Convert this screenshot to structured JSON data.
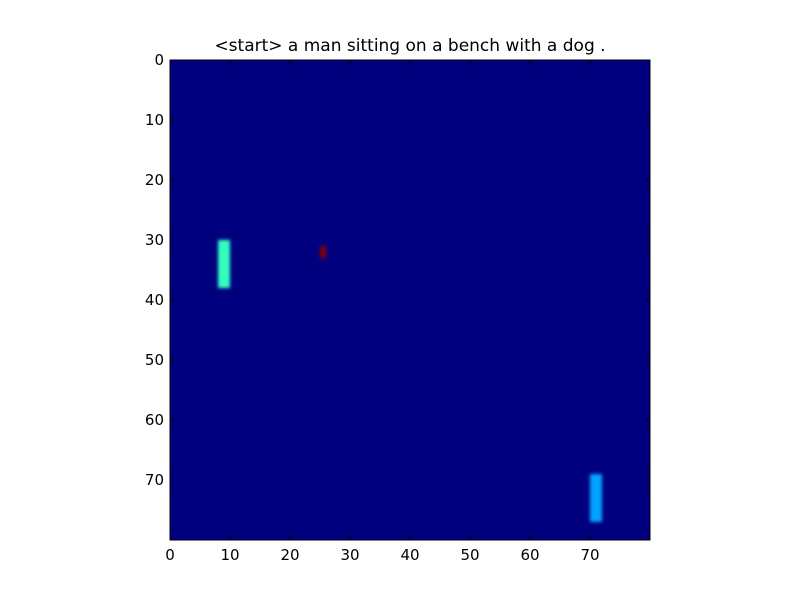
{
  "chart_data": {
    "type": "heatmap",
    "title": "<start> a man sitting on a bench with a dog .",
    "xlabel": "",
    "ylabel": "",
    "grid_size": [
      80,
      80
    ],
    "xlim": [
      0,
      80
    ],
    "ylim": [
      80,
      0
    ],
    "x_ticks": [
      0,
      10,
      20,
      30,
      40,
      50,
      60,
      70
    ],
    "y_ticks": [
      0,
      10,
      20,
      30,
      40,
      50,
      60,
      70
    ],
    "colormap": "jet",
    "background_color": "#00007f",
    "grid": false,
    "cells": [
      {
        "x0": 8,
        "x1": 10,
        "y0": 30,
        "y1": 38,
        "value": 0.4,
        "color": "#36ffc1"
      },
      {
        "x0": 25,
        "x1": 26,
        "y0": 31,
        "y1": 33,
        "value": 1.0,
        "color": "#7f0000"
      },
      {
        "x0": 70,
        "x1": 72,
        "y0": 69,
        "y1": 77,
        "value": 0.3,
        "color": "#00a4ff"
      }
    ]
  }
}
